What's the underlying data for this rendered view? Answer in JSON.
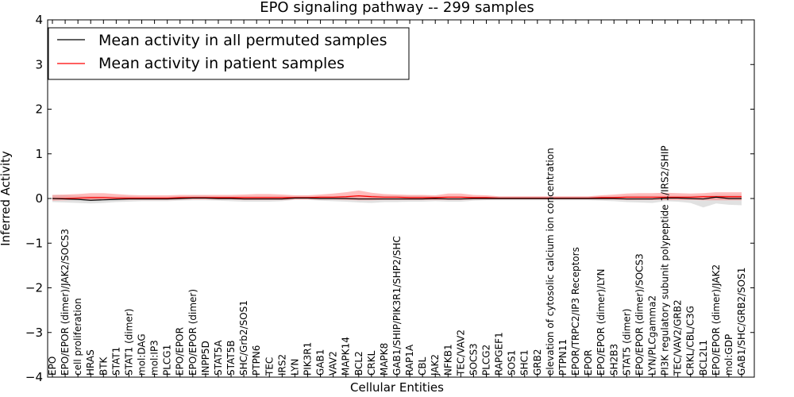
{
  "chart_data": {
    "type": "line",
    "title": "EPO signaling pathway -- 299 samples",
    "xlabel": "Cellular Entities",
    "ylabel": "Inferred Activity",
    "ylim": [
      -4,
      4
    ],
    "yticks": [
      -4,
      -3,
      -2,
      -1,
      0,
      1,
      2,
      3,
      4
    ],
    "ytick_labels": [
      "−4",
      "−3",
      "−2",
      "−1",
      "0",
      "1",
      "2",
      "3",
      "4"
    ],
    "legend_position": "top-left",
    "categories": [
      "EPO",
      "EPO/EPOR (dimer)/JAK2/SOCS3",
      "cell proliferation",
      "HRAS",
      "BTK",
      "STAT1",
      "STAT1 (dimer)",
      "mol:DAG",
      "mol:IP3",
      "PLCG1",
      "EPO/EPOR",
      "EPO/EPOR (dimer)",
      "INPP5D",
      "STAT5A",
      "STAT5B",
      "SHC/Grb2/SOS1",
      "PTPN6",
      "TEC",
      "IRS2",
      "LYN",
      "PIK3R1",
      "GAB1",
      "VAV2",
      "MAPK14",
      "BCL2",
      "CRKL",
      "MAPK8",
      "GAB1/SHIP/PIK3R1/SHP2/SHC",
      "RAP1A",
      "CBL",
      "JAK2",
      "NFKB1",
      "TEC/VAV2",
      "SOCS3",
      "PLCG2",
      "RAPGEF1",
      "SOS1",
      "SHC1",
      "GRB2",
      "elevation of cytosolic calcium ion concentration",
      "PTPN11",
      "EPOR/TRPC2/IP3 Receptors",
      "EPOR",
      "EPO/EPOR (dimer)/LYN",
      "SH2B3",
      "STAT5 (dimer)",
      "EPO/EPOR (dimer)/SOCS3",
      "LYN/PLCgamma2",
      "PI3K regulatory subunit polypeptide 1/IRS2/SHIP",
      "TEC/VAV2/GRB2",
      "CRKL/CBL/C3G",
      "BCL2L1",
      "EPO/EPOR (dimer)/JAK2",
      "mol:GDP",
      "GAB1/SHC/GRB2/SOS1"
    ],
    "series": [
      {
        "name": "Mean activity in all permuted samples",
        "color": "#000000",
        "values": [
          0.0,
          -0.01,
          -0.02,
          -0.04,
          -0.03,
          -0.02,
          -0.01,
          -0.01,
          -0.01,
          -0.01,
          0.0,
          0.01,
          0.01,
          0.0,
          0.0,
          -0.01,
          -0.01,
          -0.01,
          -0.01,
          0.01,
          0.01,
          0.0,
          0.0,
          0.0,
          -0.01,
          -0.01,
          -0.01,
          -0.01,
          -0.01,
          -0.01,
          0.0,
          -0.01,
          -0.01,
          0.0,
          0.0,
          0.0,
          0.0,
          0.0,
          0.0,
          0.0,
          0.0,
          0.0,
          0.0,
          0.0,
          0.0,
          -0.01,
          -0.01,
          -0.01,
          0.01,
          0.01,
          0.0,
          -0.01,
          0.03,
          0.0,
          0.0
        ],
        "band_lower": [
          -0.08,
          -0.09,
          -0.1,
          -0.11,
          -0.1,
          -0.08,
          -0.07,
          -0.06,
          -0.06,
          -0.06,
          -0.05,
          -0.04,
          -0.04,
          -0.05,
          -0.06,
          -0.07,
          -0.07,
          -0.07,
          -0.06,
          -0.03,
          -0.03,
          -0.05,
          -0.06,
          -0.07,
          -0.09,
          -0.1,
          -0.08,
          -0.08,
          -0.07,
          -0.07,
          -0.06,
          -0.07,
          -0.07,
          -0.05,
          -0.04,
          -0.04,
          -0.04,
          -0.04,
          -0.04,
          -0.04,
          -0.04,
          -0.04,
          -0.04,
          -0.05,
          -0.06,
          -0.08,
          -0.09,
          -0.1,
          -0.06,
          -0.07,
          -0.1,
          -0.2,
          -0.11,
          -0.14,
          -0.15
        ],
        "band_upper": [
          0.08,
          0.07,
          0.06,
          0.05,
          0.05,
          0.05,
          0.05,
          0.04,
          0.04,
          0.04,
          0.05,
          0.06,
          0.06,
          0.05,
          0.05,
          0.05,
          0.05,
          0.05,
          0.05,
          0.05,
          0.05,
          0.05,
          0.05,
          0.06,
          0.07,
          0.07,
          0.06,
          0.06,
          0.06,
          0.06,
          0.05,
          0.05,
          0.05,
          0.04,
          0.04,
          0.04,
          0.04,
          0.04,
          0.04,
          0.04,
          0.04,
          0.04,
          0.04,
          0.05,
          0.05,
          0.06,
          0.06,
          0.06,
          0.06,
          0.06,
          0.06,
          0.07,
          0.08,
          0.08,
          0.08
        ]
      },
      {
        "name": "Mean activity in patient samples",
        "color": "#ff0000",
        "values": [
          0.0,
          0.0,
          0.01,
          0.02,
          0.02,
          0.01,
          0.01,
          0.01,
          0.01,
          0.01,
          0.02,
          0.02,
          0.02,
          0.02,
          0.02,
          0.02,
          0.02,
          0.02,
          0.02,
          0.02,
          0.02,
          0.03,
          0.03,
          0.04,
          0.06,
          0.04,
          0.03,
          0.03,
          0.02,
          0.02,
          0.02,
          0.03,
          0.03,
          0.02,
          0.02,
          0.01,
          0.01,
          0.01,
          0.01,
          0.01,
          0.01,
          0.01,
          0.01,
          0.02,
          0.02,
          0.03,
          0.03,
          0.03,
          0.03,
          0.03,
          0.03,
          0.04,
          0.04,
          0.04,
          0.04
        ],
        "band_lower": [
          -0.05,
          -0.04,
          -0.03,
          -0.03,
          -0.03,
          -0.03,
          -0.03,
          -0.03,
          -0.03,
          -0.03,
          -0.02,
          -0.02,
          -0.02,
          -0.02,
          -0.02,
          -0.03,
          -0.03,
          -0.03,
          -0.03,
          -0.02,
          -0.02,
          -0.02,
          -0.02,
          -0.03,
          -0.04,
          -0.04,
          -0.03,
          -0.03,
          -0.03,
          -0.03,
          -0.03,
          -0.03,
          -0.03,
          -0.02,
          -0.02,
          -0.02,
          -0.02,
          -0.02,
          -0.02,
          -0.02,
          -0.02,
          -0.02,
          -0.02,
          -0.02,
          -0.02,
          -0.03,
          -0.03,
          -0.03,
          -0.03,
          -0.03,
          -0.03,
          -0.04,
          -0.04,
          -0.04,
          -0.04
        ],
        "band_upper": [
          0.08,
          0.09,
          0.1,
          0.12,
          0.12,
          0.1,
          0.08,
          0.07,
          0.07,
          0.07,
          0.08,
          0.08,
          0.08,
          0.08,
          0.08,
          0.09,
          0.1,
          0.1,
          0.09,
          0.07,
          0.07,
          0.09,
          0.11,
          0.14,
          0.18,
          0.13,
          0.1,
          0.09,
          0.08,
          0.08,
          0.07,
          0.11,
          0.11,
          0.08,
          0.07,
          0.05,
          0.05,
          0.05,
          0.05,
          0.05,
          0.05,
          0.05,
          0.05,
          0.07,
          0.09,
          0.11,
          0.12,
          0.12,
          0.13,
          0.12,
          0.11,
          0.12,
          0.14,
          0.14,
          0.14
        ]
      }
    ]
  }
}
